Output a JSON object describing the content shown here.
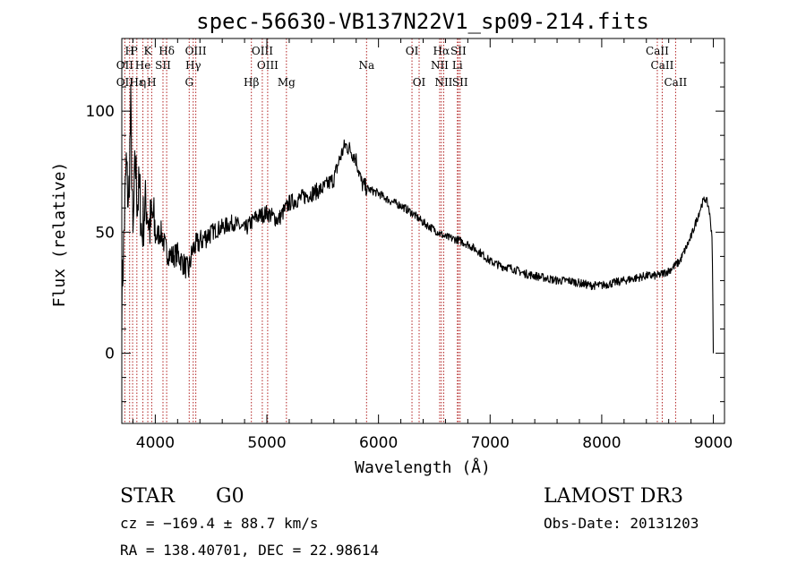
{
  "chart_data": {
    "type": "line",
    "title": "spec-56630-VB137N22V1_sp09-214.fits",
    "xlabel": "Wavelength (Å)",
    "ylabel": "Flux (relative)",
    "xlim": [
      3700,
      9100
    ],
    "ylim": [
      -29,
      130
    ],
    "x_ticks": [
      4000,
      5000,
      6000,
      7000,
      8000,
      9000
    ],
    "y_ticks": [
      0,
      50,
      100
    ],
    "line_color": "#000000",
    "marker_color": "#b22222",
    "series": [
      {
        "x": [
          3700,
          3720,
          3740,
          3760,
          3780,
          3800,
          3820,
          3840,
          3860,
          3880,
          3900,
          3920,
          3950,
          3980,
          4000,
          4050,
          4100,
          4150,
          4200,
          4250,
          4300,
          4330,
          4350,
          4400,
          4450,
          4500,
          4600,
          4700,
          4800,
          4900,
          5000,
          5100,
          5200,
          5300,
          5400,
          5500,
          5600,
          5650,
          5700,
          5750,
          5800,
          5850,
          5900,
          5950,
          6000,
          6100,
          6200,
          6300,
          6400,
          6500,
          6600,
          6700,
          6800,
          6900,
          7000,
          7100,
          7200,
          7300,
          7400,
          7500,
          7600,
          7700,
          7800,
          7900,
          8000,
          8100,
          8200,
          8300,
          8400,
          8500,
          8600,
          8700,
          8800,
          8850,
          8900,
          8930,
          8960,
          8990,
          8998,
          9000
        ],
        "y": [
          22,
          50,
          78,
          60,
          100,
          45,
          80,
          62,
          68,
          48,
          58,
          62,
          52,
          56,
          48,
          50,
          42,
          40,
          41,
          37,
          34,
          42,
          44,
          46,
          48,
          50,
          52,
          54,
          51,
          56,
          58,
          55,
          62,
          64,
          66,
          68,
          72,
          80,
          86,
          84,
          80,
          70,
          68,
          67,
          66,
          63,
          61,
          58,
          54,
          51,
          48,
          47,
          45,
          42,
          38,
          36,
          35,
          33,
          32,
          31,
          30,
          30,
          29,
          28,
          28,
          29,
          30,
          31,
          32,
          32,
          34,
          38,
          48,
          55,
          62,
          64,
          60,
          48,
          10,
          0
        ]
      }
    ],
    "spectral_lines": [
      {
        "label": "H",
        "x": 3770,
        "row": 0
      },
      {
        "label": "P",
        "x": 3810,
        "row": 0
      },
      {
        "label": "K",
        "x": 3933,
        "row": 0
      },
      {
        "label": "Hδ",
        "x": 4102,
        "row": 0
      },
      {
        "label": "OIII",
        "x": 4363,
        "row": 0
      },
      {
        "label": "OIII",
        "x": 4959,
        "row": 0
      },
      {
        "label": "OI",
        "x": 6300,
        "row": 0
      },
      {
        "label": "Hα",
        "x": 6563,
        "row": 0
      },
      {
        "label": "SII",
        "x": 6716,
        "row": 0
      },
      {
        "label": "CaII",
        "x": 8498,
        "row": 0
      },
      {
        "label": "OII",
        "x": 3727,
        "row": 1
      },
      {
        "label": "He",
        "x": 3889,
        "row": 1
      },
      {
        "label": "SII",
        "x": 4069,
        "row": 1
      },
      {
        "label": "Hγ",
        "x": 4340,
        "row": 1
      },
      {
        "label": "OIII",
        "x": 5007,
        "row": 1
      },
      {
        "label": "Na",
        "x": 5893,
        "row": 1
      },
      {
        "label": "NII",
        "x": 6548,
        "row": 1
      },
      {
        "label": "Li",
        "x": 6707,
        "row": 1
      },
      {
        "label": "CaII",
        "x": 8542,
        "row": 1
      },
      {
        "label": "OII",
        "x": 3727,
        "row": 2
      },
      {
        "label": "Hε",
        "x": 3835,
        "row": 2
      },
      {
        "label": "η",
        "x": 3889,
        "row": 2
      },
      {
        "label": "H",
        "x": 3968,
        "row": 2
      },
      {
        "label": "G",
        "x": 4304,
        "row": 2
      },
      {
        "label": "Hβ",
        "x": 4861,
        "row": 2
      },
      {
        "label": "Mg",
        "x": 5175,
        "row": 2
      },
      {
        "label": "OI",
        "x": 6364,
        "row": 2
      },
      {
        "label": "NII",
        "x": 6584,
        "row": 2
      },
      {
        "label": "SII",
        "x": 6731,
        "row": 2
      },
      {
        "label": "CaII",
        "x": 8662,
        "row": 2
      }
    ],
    "marker_positions": [
      3727,
      3770,
      3797,
      3835,
      3889,
      3933,
      3968,
      4069,
      4102,
      4304,
      4340,
      4363,
      4861,
      4959,
      5007,
      5175,
      5893,
      6300,
      6364,
      6548,
      6563,
      6584,
      6707,
      6716,
      6731,
      8498,
      8542,
      8662
    ]
  },
  "info": {
    "object_class": "STAR",
    "subclass": "G0",
    "survey": "LAMOST DR3",
    "cz": "cz = −169.4 ± 88.7 km/s",
    "obs_date": "Obs-Date: 20131203",
    "coords": "RA = 138.40701, DEC =  22.98614"
  }
}
